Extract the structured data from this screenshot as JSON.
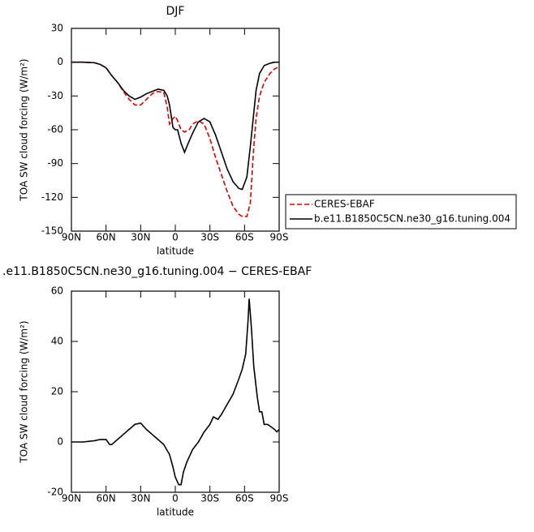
{
  "chart_data": [
    {
      "type": "line",
      "title": "DJF",
      "xlabel": "latitude",
      "ylabel": "TOA SW cloud forcing (W/m²)",
      "x": [
        90,
        80,
        70,
        65,
        60,
        55,
        50,
        45,
        40,
        35,
        30,
        25,
        20,
        15,
        10,
        7,
        5,
        2,
        0,
        -2,
        -5,
        -8,
        -12,
        -15,
        -20,
        -25,
        -30,
        -35,
        -40,
        -45,
        -50,
        -55,
        -58,
        -62,
        -65,
        -68,
        -70,
        -73,
        -77,
        -82,
        -86,
        -90
      ],
      "series": [
        {
          "name": "CERES-EBAF",
          "color": "#e00000",
          "linestyle": "dashed",
          "values": [
            0,
            0,
            -0.5,
            -2,
            -5,
            -12,
            -18,
            -26,
            -33,
            -38,
            -38,
            -33,
            -28,
            -26,
            -27,
            -40,
            -55,
            -50,
            -48,
            -52,
            -60,
            -62,
            -60,
            -55,
            -52,
            -55,
            -68,
            -85,
            -100,
            -115,
            -128,
            -135,
            -137,
            -137,
            -125,
            -75,
            -50,
            -30,
            -18,
            -10,
            -6,
            -4
          ]
        },
        {
          "name": "b.e11.B1850C5CN.ne30_g16.tuning.004",
          "color": "#000000",
          "linestyle": "solid",
          "values": [
            0,
            0,
            -0.5,
            -2,
            -5,
            -12,
            -18,
            -25,
            -30,
            -33,
            -31,
            -28,
            -26,
            -24,
            -25,
            -30,
            -38,
            -58,
            -60,
            -60,
            -72,
            -80,
            -70,
            -63,
            -53,
            -50,
            -53,
            -65,
            -80,
            -95,
            -106,
            -112,
            -113,
            -102,
            -75,
            -45,
            -25,
            -10,
            -3,
            -1,
            0,
            0
          ]
        }
      ],
      "xlim": [
        90,
        -90
      ],
      "xticks": [
        {
          "value": 90,
          "label": "90N"
        },
        {
          "value": 60,
          "label": "60N"
        },
        {
          "value": 30,
          "label": "30N"
        },
        0,
        {
          "value": -30,
          "label": "30S"
        },
        {
          "value": -60,
          "label": "60S"
        },
        {
          "value": -90,
          "label": "90S"
        }
      ],
      "ylim": [
        -150,
        30
      ],
      "yticks": [
        -150,
        -120,
        -90,
        -60,
        -30,
        0,
        30
      ],
      "legend": "right"
    },
    {
      "type": "line",
      "title": ".e11.B1850C5CN.ne30_g16.tuning.004 − CERES-EBAF",
      "xlabel": "latitude",
      "ylabel": "TOA SW cloud forcing (W/m²)",
      "x": [
        90,
        80,
        70,
        65,
        60,
        57,
        55,
        50,
        45,
        40,
        35,
        30,
        25,
        20,
        15,
        10,
        5,
        2,
        0,
        -3,
        -5,
        -7,
        -10,
        -15,
        -20,
        -25,
        -30,
        -33,
        -37,
        -40,
        -45,
        -50,
        -55,
        -58,
        -61,
        -63,
        -64,
        -66,
        -68,
        -71,
        -73,
        -75,
        -77,
        -80,
        -83,
        -86,
        -88,
        -90
      ],
      "series": [
        {
          "color": "#000000",
          "linestyle": "solid",
          "values": [
            0,
            0,
            0.5,
            1,
            1,
            -1,
            -1,
            1,
            3,
            5,
            7,
            7.5,
            5,
            3,
            1,
            -1,
            -5,
            -10,
            -14,
            -17,
            -17,
            -12,
            -8,
            -3,
            0,
            4,
            7,
            10,
            9,
            11,
            15,
            19,
            25,
            29,
            35,
            48,
            57,
            45,
            30,
            18,
            12,
            12,
            7,
            7,
            6,
            5,
            4,
            5
          ]
        }
      ],
      "xlim": [
        90,
        -90
      ],
      "xticks": [
        {
          "value": 90,
          "label": "90N"
        },
        {
          "value": 60,
          "label": "60N"
        },
        {
          "value": 30,
          "label": "30N"
        },
        0,
        {
          "value": -30,
          "label": "30S"
        },
        {
          "value": -60,
          "label": "60S"
        },
        {
          "value": -90,
          "label": "90S"
        }
      ],
      "ylim": [
        -20,
        60
      ],
      "yticks": [
        -20,
        0,
        20,
        40,
        60
      ]
    }
  ]
}
